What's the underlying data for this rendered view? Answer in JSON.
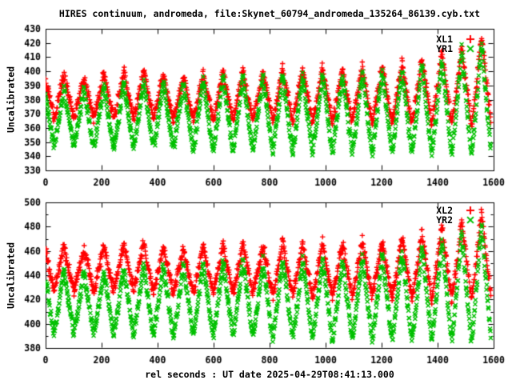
{
  "title": "HIRES continuum, andromeda, file:Skynet_60794_andromeda_135264_86139.cyb.txt",
  "xlabel": "rel seconds : UT date 2025-04-29T08:41:13.000",
  "colors": {
    "background": "#ffffff",
    "axis": "#000000",
    "series_red": "#ff0000",
    "series_green": "#00c000"
  },
  "chart_data": [
    {
      "type": "scatter",
      "panel": "top",
      "ylabel": "Uncalibrated",
      "ylim": [
        330,
        430
      ],
      "yticks": [
        330,
        340,
        350,
        360,
        370,
        380,
        390,
        400,
        410,
        420,
        430
      ],
      "yticks_minor": [],
      "xlim": [
        0,
        1600
      ],
      "xticks": [
        0,
        200,
        400,
        600,
        800,
        1000,
        1200,
        1400,
        1600
      ],
      "grid": false,
      "legend_position": "top-right",
      "pattern": "two dense point series oscillating in phase, period ~71 s, ~22 cycles over 0-1590 s, amplitude grows after ~1200 s, tallest peak ~425 near t=1557 s",
      "series": [
        {
          "name": "XL1",
          "color": "#ff0000",
          "marker": "plus",
          "period_s": 71,
          "first_peak_s": 66,
          "t_start": 0,
          "t_end": 1590,
          "sample_step_s": 1.3,
          "peak_values": [
            398,
            396,
            398,
            400,
            401,
            398,
            397,
            399,
            400,
            401,
            400,
            402,
            401,
            403,
            402,
            404,
            404,
            406,
            409,
            413,
            418,
            425
          ],
          "trough_start": 368,
          "trough_end": 363,
          "noise_sigma": 2.0,
          "shape_exp": 1.1
        },
        {
          "name": "YR1",
          "color": "#00c000",
          "marker": "cross",
          "period_s": 71,
          "first_peak_s": 66,
          "t_start": 0,
          "t_end": 1590,
          "sample_step_s": 1.3,
          "peak_values": [
            389,
            388,
            390,
            392,
            394,
            392,
            392,
            395,
            396,
            397,
            396,
            398,
            397,
            399,
            398,
            400,
            400,
            402,
            405,
            409,
            414,
            420
          ],
          "trough_start": 347,
          "trough_end": 341,
          "noise_sigma": 2.0,
          "shape_exp": 1.1
        }
      ]
    },
    {
      "type": "scatter",
      "panel": "bottom",
      "ylabel": "Uncalibrated",
      "ylim": [
        380,
        500
      ],
      "yticks": [
        380,
        400,
        420,
        440,
        460,
        480,
        500
      ],
      "yticks_minor": [
        390,
        410,
        430,
        450,
        470,
        490
      ],
      "xlim": [
        0,
        1600
      ],
      "xticks": [
        0,
        200,
        400,
        600,
        800,
        1000,
        1200,
        1400,
        1600
      ],
      "grid": false,
      "legend_position": "top-right",
      "pattern": "same periodic structure as top panel, period ~71 s, red peaks ~465 early rising to ~492 at the end, green peaks ~444 rising to ~482",
      "series": [
        {
          "name": "XL2",
          "color": "#ff0000",
          "marker": "plus",
          "period_s": 71,
          "first_peak_s": 66,
          "t_start": 0,
          "t_end": 1590,
          "sample_step_s": 1.3,
          "peak_values": [
            465,
            462,
            464,
            466,
            467,
            464,
            462,
            465,
            466,
            467,
            465,
            467,
            466,
            468,
            466,
            468,
            469,
            471,
            475,
            480,
            485,
            492
          ],
          "trough_start": 429,
          "trough_end": 420,
          "noise_sigma": 2.5,
          "shape_exp": 1.1
        },
        {
          "name": "YR2",
          "color": "#00c000",
          "marker": "cross",
          "period_s": 71,
          "first_peak_s": 66,
          "t_start": 0,
          "t_end": 1590,
          "sample_step_s": 1.3,
          "peak_values": [
            444,
            442,
            444,
            447,
            449,
            448,
            448,
            451,
            452,
            453,
            452,
            454,
            453,
            455,
            454,
            456,
            457,
            460,
            464,
            469,
            474,
            482
          ],
          "trough_start": 393,
          "trough_end": 385,
          "noise_sigma": 2.5,
          "shape_exp": 1.1
        }
      ]
    }
  ]
}
